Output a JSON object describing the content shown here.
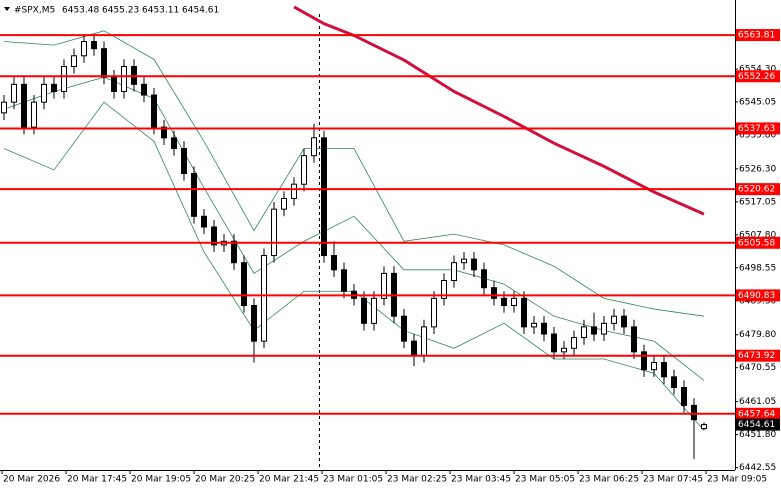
{
  "chart_data": {
    "type": "candlestick",
    "symbol": "#SPX,M5",
    "ylim": [
      6441.88,
      6573.64
    ],
    "yticks": [
      {
        "value": 6554.3,
        "label": "6554.30"
      },
      6545.05,
      {
        "value": 6535.8,
        "label": "6535.80"
      },
      {
        "value": 6526.3,
        "label": "6526.30"
      },
      6517.05,
      {
        "value": 6507.8,
        "label": "6507.80"
      },
      6498.55,
      {
        "value": 6489.3,
        "label": "6489.30"
      },
      {
        "value": 6479.8,
        "label": "6479.80"
      },
      6470.55,
      6461.05,
      {
        "value": 6451.8,
        "label": "6451.80"
      },
      6442.55
    ],
    "xlabels": [
      "20 Mar 2026",
      "20 Mar 17:45",
      "20 Mar 19:05",
      "20 Mar 20:25",
      "20 Mar 21:45",
      "23 Mar 01:05",
      "23 Mar 02:25",
      "23 Mar 03:45",
      "23 Mar 05:05",
      "23 Mar 06:25",
      "23 Mar 07:45",
      "23 Mar 09:05"
    ],
    "open": [
      6542,
      6545,
      6550,
      6538,
      6545,
      6550,
      6548,
      6555,
      6558,
      6562,
      6560,
      6552,
      6548,
      6555,
      6550,
      6547,
      6538,
      6535,
      6532,
      6525,
      6513,
      6510,
      6505,
      6506,
      6500,
      6488,
      6478,
      6502,
      6515,
      6518,
      6522,
      6530,
      6535,
      6502,
      6498,
      6492,
      6490,
      6483,
      6490,
      6497,
      6485,
      6478,
      6474,
      6482,
      6490,
      6495,
      6500,
      6501,
      6498,
      6493,
      6490,
      6488,
      6490,
      6482,
      6483,
      6480,
      6475,
      6476,
      6479,
      6482,
      6480,
      6483,
      6485,
      6482,
      6475,
      6470,
      6472,
      6468,
      6465,
      6460,
      6453.48
    ],
    "high": [
      6547,
      6552,
      6552,
      6547,
      6552,
      6552,
      6557,
      6560,
      6564,
      6564,
      6562,
      6554,
      6557,
      6557,
      6552,
      6549,
      6540,
      6537,
      6534,
      6527,
      6515,
      6512,
      6508,
      6508,
      6502,
      6490,
      6504,
      6517,
      6520,
      6524,
      6532,
      6539,
      6537,
      6506,
      6500,
      6494,
      6492,
      6492,
      6499,
      6499,
      6487,
      6480,
      6484,
      6492,
      6497,
      6502,
      6503,
      6503,
      6500,
      6495,
      6492,
      6492,
      6492,
      6485,
      6485,
      6482,
      6478,
      6481,
      6484,
      6486,
      6485,
      6487,
      6487,
      6484,
      6477,
      6474,
      6474,
      6470,
      6467,
      6462,
      6455.23
    ],
    "low": [
      6540,
      6543,
      6536,
      6536,
      6543,
      6546,
      6546,
      6553,
      6556,
      6558,
      6550,
      6546,
      6546,
      6548,
      6545,
      6536,
      6533,
      6530,
      6523,
      6511,
      6508,
      6503,
      6503,
      6498,
      6486,
      6472,
      6476,
      6500,
      6513,
      6516,
      6520,
      6528,
      6500,
      6496,
      6490,
      6488,
      6481,
      6481,
      6488,
      6483,
      6476,
      6471,
      6472,
      6480,
      6488,
      6493,
      6498,
      6496,
      6491,
      6488,
      6486,
      6486,
      6480,
      6480,
      6478,
      6473,
      6473,
      6474,
      6477,
      6478,
      6478,
      6481,
      6480,
      6473,
      6468,
      6468,
      6466,
      6463,
      6458,
      6445,
      6453.11
    ],
    "close": [
      6545,
      6550,
      6538,
      6545,
      6550,
      6548,
      6555,
      6558,
      6562,
      6560,
      6552,
      6548,
      6555,
      6550,
      6547,
      6538,
      6535,
      6532,
      6525,
      6513,
      6510,
      6505,
      6506,
      6500,
      6488,
      6478,
      6502,
      6515,
      6518,
      6522,
      6530,
      6535,
      6502,
      6498,
      6492,
      6490,
      6483,
      6490,
      6497,
      6485,
      6478,
      6474,
      6482,
      6490,
      6495,
      6500,
      6501,
      6498,
      6493,
      6490,
      6488,
      6490,
      6482,
      6483,
      6480,
      6475,
      6476,
      6479,
      6482,
      6480,
      6483,
      6485,
      6482,
      6475,
      6470,
      6472,
      6468,
      6465,
      6460,
      6456,
      6454.61
    ],
    "bands": {
      "color": "#2e8b57",
      "x": [
        0,
        5,
        10,
        15,
        20,
        25,
        30,
        35,
        40,
        45,
        50,
        55,
        60,
        65,
        70
      ],
      "series": [
        {
          "values": [
            6562,
            6561,
            6565,
            6557,
            6534,
            6509,
            6532,
            6532,
            6506,
            6508,
            6505,
            6499,
            6490,
            6487,
            6485
          ]
        },
        {
          "values": [
            6543,
            6548,
            6552,
            6546,
            6521,
            6497,
            6506,
            6513,
            6498,
            6498,
            6494,
            6485,
            6481,
            6478,
            6467
          ]
        },
        {
          "values": [
            6532,
            6526,
            6545,
            6534,
            6503,
            6481,
            6492,
            6492,
            6481,
            6476,
            6483,
            6473,
            6473,
            6469,
            6453
          ]
        }
      ]
    },
    "ma": {
      "color": "#d0103a",
      "x": [
        29,
        32,
        35,
        40,
        45,
        50,
        55,
        60,
        65,
        70
      ],
      "values": [
        6571.7,
        6567,
        6563.7,
        6556.8,
        6548,
        6541,
        6533.5,
        6527,
        6519.8,
        6513.6
      ]
    },
    "levels": {
      "color": "#ff0000",
      "values": [
        6563.81,
        6552.26,
        6537.63,
        6520.62,
        6505.58,
        6490.83,
        6473.92,
        6457.64
      ]
    }
  }
}
